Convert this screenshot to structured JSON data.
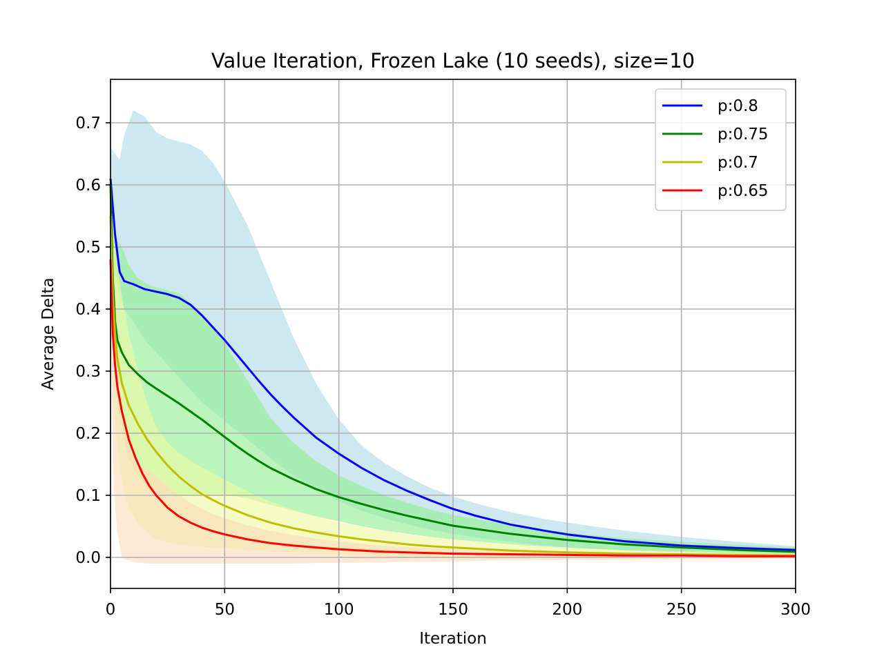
{
  "chart_data": {
    "type": "line",
    "title": "Value Iteration, Frozen Lake (10 seeds), size=10",
    "xlabel": "Iteration",
    "ylabel": "Average Delta",
    "xlim": [
      0,
      300
    ],
    "ylim": [
      -0.05,
      0.77
    ],
    "x_ticks": [
      "0",
      "50",
      "100",
      "150",
      "200",
      "250",
      "300"
    ],
    "y_ticks": [
      "0.0",
      "0.1",
      "0.2",
      "0.3",
      "0.4",
      "0.5",
      "0.6",
      "0.7"
    ],
    "grid": true,
    "legend_position": "top-right",
    "series": [
      {
        "name": "p:0.8",
        "color": "#0000ff",
        "band_color": "#add8e6",
        "x": [
          0,
          2,
          4,
          6,
          10,
          15,
          20,
          25,
          30,
          35,
          40,
          45,
          50,
          55,
          60,
          65,
          70,
          75,
          80,
          90,
          100,
          110,
          120,
          130,
          140,
          150,
          160,
          175,
          190,
          200,
          225,
          250,
          275,
          300
        ],
        "y": [
          0.61,
          0.52,
          0.46,
          0.445,
          0.44,
          0.432,
          0.428,
          0.424,
          0.418,
          0.407,
          0.39,
          0.37,
          0.35,
          0.328,
          0.306,
          0.284,
          0.263,
          0.244,
          0.226,
          0.193,
          0.167,
          0.144,
          0.124,
          0.107,
          0.092,
          0.078,
          0.067,
          0.053,
          0.043,
          0.037,
          0.026,
          0.019,
          0.015,
          0.012
        ],
        "lower": [
          0.58,
          0.46,
          0.42,
          0.4,
          0.38,
          0.35,
          0.33,
          0.31,
          0.29,
          0.27,
          0.25,
          0.235,
          0.22,
          0.205,
          0.19,
          0.175,
          0.16,
          0.145,
          0.132,
          0.11,
          0.09,
          0.075,
          0.063,
          0.053,
          0.045,
          0.038,
          0.032,
          0.025,
          0.019,
          0.016,
          0.011,
          0.008,
          0.006,
          0.005
        ],
        "upper": [
          0.66,
          0.65,
          0.64,
          0.68,
          0.72,
          0.71,
          0.685,
          0.675,
          0.67,
          0.665,
          0.655,
          0.635,
          0.605,
          0.57,
          0.535,
          0.49,
          0.445,
          0.4,
          0.355,
          0.28,
          0.222,
          0.18,
          0.152,
          0.13,
          0.112,
          0.098,
          0.087,
          0.073,
          0.062,
          0.056,
          0.043,
          0.033,
          0.025,
          0.018
        ]
      },
      {
        "name": "p:0.75",
        "color": "#008000",
        "band_color": "#90ee90",
        "x": [
          0,
          1,
          2,
          3,
          5,
          8,
          12,
          16,
          20,
          25,
          30,
          35,
          40,
          45,
          50,
          55,
          60,
          65,
          70,
          80,
          90,
          100,
          110,
          120,
          130,
          140,
          150,
          175,
          200,
          225,
          250,
          275,
          300
        ],
        "y": [
          0.6,
          0.45,
          0.38,
          0.35,
          0.33,
          0.31,
          0.295,
          0.282,
          0.272,
          0.26,
          0.248,
          0.235,
          0.222,
          0.208,
          0.194,
          0.18,
          0.167,
          0.155,
          0.144,
          0.126,
          0.11,
          0.097,
          0.086,
          0.076,
          0.067,
          0.059,
          0.051,
          0.038,
          0.028,
          0.021,
          0.016,
          0.012,
          0.009
        ],
        "lower": [
          0.55,
          0.37,
          0.3,
          0.25,
          0.2,
          0.16,
          0.13,
          0.115,
          0.105,
          0.1,
          0.098,
          0.1,
          0.1,
          0.1,
          0.1,
          0.098,
          0.095,
          0.09,
          0.085,
          0.075,
          0.066,
          0.058,
          0.05,
          0.043,
          0.038,
          0.033,
          0.029,
          0.021,
          0.015,
          0.011,
          0.008,
          0.006,
          0.004
        ],
        "upper": [
          0.6,
          0.53,
          0.52,
          0.51,
          0.5,
          0.47,
          0.45,
          0.44,
          0.435,
          0.43,
          0.425,
          0.41,
          0.39,
          0.37,
          0.345,
          0.315,
          0.285,
          0.255,
          0.225,
          0.185,
          0.155,
          0.132,
          0.115,
          0.1,
          0.088,
          0.077,
          0.068,
          0.052,
          0.04,
          0.031,
          0.025,
          0.02,
          0.016
        ]
      },
      {
        "name": "p:0.7",
        "color": "#bfbf00",
        "band_color": "#f0f8a0",
        "x": [
          0,
          1,
          2,
          3,
          5,
          8,
          12,
          16,
          20,
          25,
          30,
          35,
          40,
          45,
          50,
          60,
          70,
          80,
          90,
          100,
          110,
          120,
          130,
          140,
          150,
          175,
          200,
          225,
          250,
          275,
          300
        ],
        "y": [
          0.55,
          0.42,
          0.36,
          0.32,
          0.28,
          0.245,
          0.215,
          0.19,
          0.17,
          0.148,
          0.13,
          0.115,
          0.102,
          0.092,
          0.083,
          0.068,
          0.056,
          0.047,
          0.04,
          0.034,
          0.029,
          0.025,
          0.021,
          0.018,
          0.016,
          0.011,
          0.008,
          0.006,
          0.005,
          0.004,
          0.003
        ],
        "lower": [
          0.5,
          0.3,
          0.22,
          0.17,
          0.12,
          0.08,
          0.055,
          0.04,
          0.03,
          0.025,
          0.02,
          0.018,
          0.017,
          0.016,
          0.015,
          0.012,
          0.01,
          0.008,
          0.006,
          0.004,
          0.003,
          0.002,
          0.001,
          0.0,
          -0.001,
          -0.002,
          -0.002,
          -0.002,
          -0.001,
          -0.001,
          -0.001
        ],
        "upper": [
          0.6,
          0.55,
          0.5,
          0.47,
          0.42,
          0.36,
          0.3,
          0.25,
          0.21,
          0.185,
          0.168,
          0.155,
          0.145,
          0.135,
          0.125,
          0.106,
          0.09,
          0.077,
          0.066,
          0.057,
          0.049,
          0.043,
          0.037,
          0.033,
          0.029,
          0.021,
          0.016,
          0.012,
          0.01,
          0.008,
          0.007
        ]
      },
      {
        "name": "p:0.65",
        "color": "#ff0000",
        "band_color": "#ffdab9",
        "x": [
          0,
          1,
          2,
          3,
          5,
          8,
          11,
          14,
          17,
          20,
          25,
          30,
          35,
          40,
          45,
          50,
          60,
          70,
          80,
          90,
          100,
          110,
          120,
          130,
          140,
          150,
          175,
          200,
          225,
          250,
          275,
          300
        ],
        "y": [
          0.48,
          0.36,
          0.31,
          0.275,
          0.235,
          0.19,
          0.16,
          0.135,
          0.115,
          0.1,
          0.08,
          0.066,
          0.056,
          0.048,
          0.042,
          0.037,
          0.029,
          0.023,
          0.019,
          0.016,
          0.013,
          0.011,
          0.009,
          0.008,
          0.007,
          0.006,
          0.005,
          0.004,
          0.003,
          0.003,
          0.002,
          0.002
        ],
        "lower": [
          0.4,
          0.15,
          0.08,
          0.04,
          0.0,
          -0.005,
          -0.008,
          -0.009,
          -0.01,
          -0.01,
          -0.01,
          -0.01,
          -0.01,
          -0.01,
          -0.01,
          -0.01,
          -0.01,
          -0.01,
          -0.01,
          -0.009,
          -0.009,
          -0.008,
          -0.008,
          -0.007,
          -0.007,
          -0.006,
          -0.005,
          -0.004,
          -0.004,
          -0.003,
          -0.003,
          -0.002
        ],
        "upper": [
          0.55,
          0.42,
          0.35,
          0.3,
          0.24,
          0.19,
          0.16,
          0.145,
          0.14,
          0.13,
          0.115,
          0.1,
          0.088,
          0.078,
          0.07,
          0.063,
          0.052,
          0.043,
          0.036,
          0.03,
          0.026,
          0.022,
          0.019,
          0.017,
          0.015,
          0.013,
          0.01,
          0.008,
          0.006,
          0.005,
          0.004,
          0.003
        ]
      }
    ]
  }
}
